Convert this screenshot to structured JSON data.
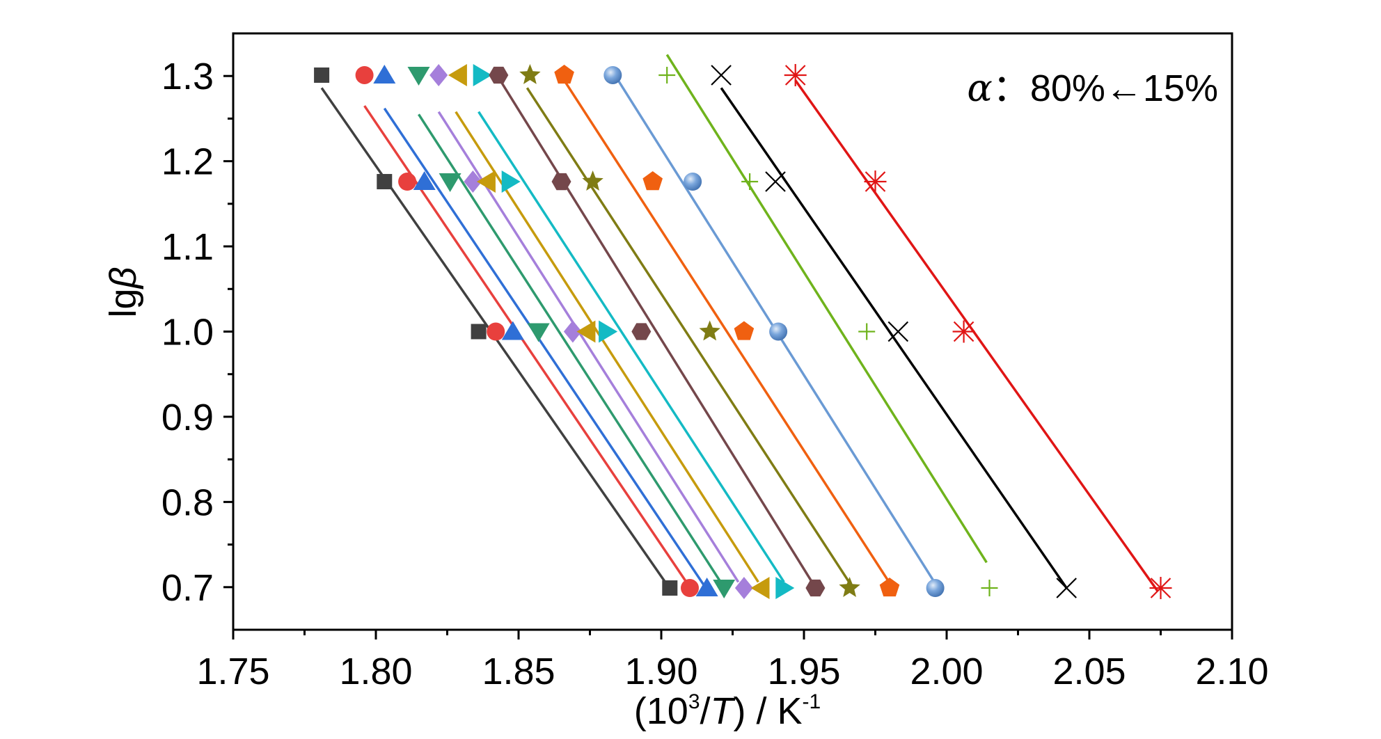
{
  "chart_data": {
    "type": "scatter",
    "title": "",
    "xlabel": {
      "prefix": "(10",
      "sup": "3",
      "mid": "/",
      "italic": "T",
      "suffix": ") / K",
      "sup2": "-1"
    },
    "ylabel": {
      "prefix": "lg",
      "symbol": "β"
    },
    "annotation": {
      "symbol": "α",
      "text": "：80%←15%"
    },
    "xlim": [
      1.75,
      2.1
    ],
    "ylim": [
      0.65,
      1.35
    ],
    "xticks": [
      "1.75",
      "1.80",
      "1.85",
      "1.90",
      "1.95",
      "2.00",
      "2.05",
      "2.10"
    ],
    "yticks": [
      "0.7",
      "0.8",
      "0.9",
      "1.0",
      "1.1",
      "1.2",
      "1.3"
    ],
    "y_levels": [
      1.301,
      1.176,
      1.0,
      0.699
    ],
    "grid": false,
    "legend": "none",
    "series": [
      {
        "marker": "square",
        "color": "#404040",
        "x": [
          1.781,
          1.803,
          1.836,
          1.903
        ],
        "fit": [
          [
            1.781,
            1.286
          ],
          [
            1.902,
            0.703
          ]
        ]
      },
      {
        "marker": "circle",
        "color": "#e8403d",
        "x": [
          1.796,
          1.811,
          1.842,
          1.91
        ],
        "fit": [
          [
            1.796,
            1.265
          ],
          [
            1.911,
            0.695
          ]
        ]
      },
      {
        "marker": "triangle-up",
        "color": "#2f6fd6",
        "x": [
          1.803,
          1.817,
          1.848,
          1.916
        ],
        "fit": [
          [
            1.803,
            1.262
          ],
          [
            1.916,
            0.697
          ]
        ]
      },
      {
        "marker": "triangle-down",
        "color": "#2e9a6e",
        "x": [
          1.815,
          1.826,
          1.857,
          1.922
        ],
        "fit": [
          [
            1.815,
            1.255
          ],
          [
            1.921,
            0.705
          ]
        ]
      },
      {
        "marker": "diamond",
        "color": "#a57fdb",
        "x": [
          1.822,
          1.834,
          1.869,
          1.929
        ],
        "fit": [
          [
            1.822,
            1.258
          ],
          [
            1.927,
            0.706
          ]
        ]
      },
      {
        "marker": "triangle-left",
        "color": "#c69b0d",
        "x": [
          1.829,
          1.839,
          1.874,
          1.935
        ],
        "fit": [
          [
            1.828,
            1.258
          ],
          [
            1.934,
            0.706
          ]
        ]
      },
      {
        "marker": "triangle-right",
        "color": "#14bac4",
        "x": [
          1.837,
          1.847,
          1.881,
          1.943
        ],
        "fit": [
          [
            1.836,
            1.258
          ],
          [
            1.943,
            0.706
          ]
        ]
      },
      {
        "marker": "hexagon",
        "color": "#74474b",
        "x": [
          1.843,
          1.865,
          1.893,
          1.954
        ],
        "fit": [
          [
            1.843,
            1.298
          ],
          [
            1.953,
            0.705
          ]
        ]
      },
      {
        "marker": "star",
        "color": "#7f7c14",
        "x": [
          1.854,
          1.876,
          1.917,
          1.966
        ],
        "fit": [
          [
            1.853,
            1.286
          ],
          [
            1.966,
            0.705
          ]
        ]
      },
      {
        "marker": "pentagon",
        "color": "#f06010",
        "x": [
          1.866,
          1.897,
          1.929,
          1.98
        ],
        "fit": [
          [
            1.865,
            1.3
          ],
          [
            1.98,
            0.705
          ]
        ]
      },
      {
        "marker": "sphere",
        "color": "#6a9ad4",
        "x": [
          1.883,
          1.911,
          1.941,
          1.996
        ],
        "fit": [
          [
            1.883,
            1.305
          ],
          [
            1.997,
            0.699
          ]
        ]
      },
      {
        "marker": "plus",
        "color": "#6fb31c",
        "x": [
          1.902,
          1.931,
          1.972,
          2.015
        ],
        "fit": [
          [
            1.902,
            1.325
          ],
          [
            2.014,
            0.729
          ]
        ]
      },
      {
        "marker": "cross",
        "color": "#000000",
        "x": [
          1.921,
          1.94,
          1.983,
          2.042
        ],
        "fit": [
          [
            1.921,
            1.286
          ],
          [
            2.042,
            0.699
          ]
        ]
      },
      {
        "marker": "asterisk",
        "color": "#e01515",
        "x": [
          1.947,
          1.975,
          2.006,
          2.075
        ],
        "fit": [
          [
            1.947,
            1.295
          ],
          [
            2.074,
            0.695
          ]
        ]
      }
    ]
  }
}
